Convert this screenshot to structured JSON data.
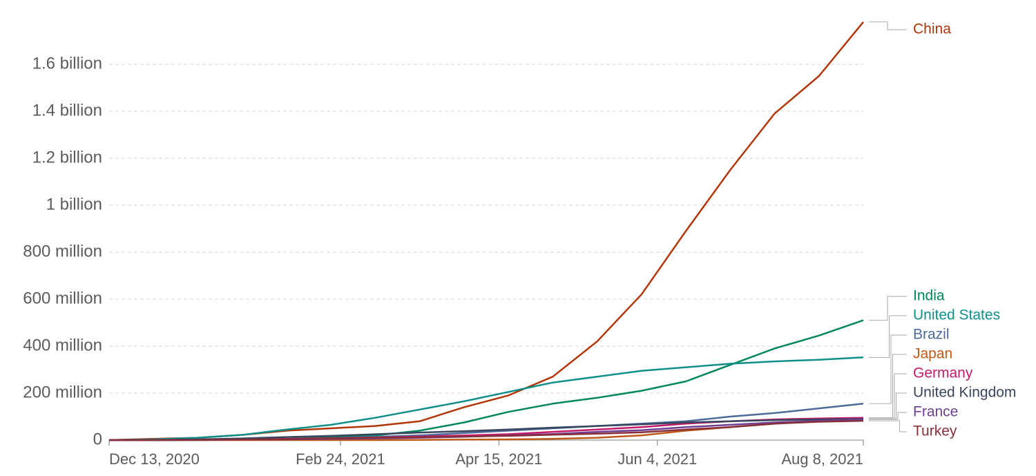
{
  "chart_data": {
    "type": "line",
    "x": [
      "2020-12-13",
      "2020-12-27",
      "2021-01-10",
      "2021-01-24",
      "2021-02-07",
      "2021-02-21",
      "2021-03-07",
      "2021-03-21",
      "2021-04-04",
      "2021-04-18",
      "2021-05-02",
      "2021-05-16",
      "2021-05-30",
      "2021-06-13",
      "2021-06-27",
      "2021-07-11",
      "2021-07-25",
      "2021-08-08"
    ],
    "series": [
      {
        "name": "China",
        "color": "#b13507",
        "values": [
          0,
          5000000,
          10000000,
          22000000,
          40000000,
          50000000,
          60000000,
          80000000,
          140000000,
          190000000,
          270000000,
          420000000,
          620000000,
          890000000,
          1150000000,
          1390000000,
          1550000000,
          1780000000
        ]
      },
      {
        "name": "India",
        "color": "#00875e",
        "values": [
          0,
          0,
          0,
          2000000,
          5000000,
          12000000,
          20000000,
          40000000,
          75000000,
          120000000,
          155000000,
          180000000,
          210000000,
          250000000,
          320000000,
          390000000,
          445000000,
          510000000
        ]
      },
      {
        "name": "United States",
        "color": "#0f8f8a",
        "values": [
          0,
          3000000,
          10000000,
          22000000,
          45000000,
          65000000,
          95000000,
          130000000,
          165000000,
          205000000,
          245000000,
          270000000,
          295000000,
          310000000,
          325000000,
          335000000,
          342000000,
          352000000
        ]
      },
      {
        "name": "Brazil",
        "color": "#4c6a9c",
        "values": [
          0,
          0,
          0,
          2000000,
          5000000,
          8000000,
          14000000,
          20000000,
          30000000,
          40000000,
          50000000,
          60000000,
          70000000,
          80000000,
          100000000,
          115000000,
          135000000,
          155000000
        ]
      },
      {
        "name": "Japan",
        "color": "#c05917",
        "values": [
          0,
          0,
          0,
          0,
          0,
          0,
          0,
          1000000,
          2000000,
          3000000,
          5000000,
          10000000,
          20000000,
          40000000,
          55000000,
          70000000,
          85000000,
          95000000
        ]
      },
      {
        "name": "Germany",
        "color": "#c5196a",
        "values": [
          0,
          0,
          2000000,
          3000000,
          5000000,
          8000000,
          11000000,
          15000000,
          20000000,
          25000000,
          35000000,
          45000000,
          55000000,
          70000000,
          80000000,
          88000000,
          92000000,
          95000000
        ]
      },
      {
        "name": "United Kingdom",
        "color": "#38465e",
        "values": [
          0,
          1000000,
          3000000,
          7000000,
          13000000,
          18000000,
          25000000,
          32000000,
          38000000,
          45000000,
          53000000,
          60000000,
          67000000,
          75000000,
          80000000,
          85000000,
          88000000,
          90000000
        ]
      },
      {
        "name": "France",
        "color": "#6d3e91",
        "values": [
          0,
          0,
          1000000,
          2000000,
          3000000,
          5000000,
          7000000,
          10000000,
          14000000,
          20000000,
          26000000,
          35000000,
          42000000,
          55000000,
          65000000,
          75000000,
          82000000,
          88000000
        ]
      },
      {
        "name": "Turkey",
        "color": "#883039",
        "values": [
          0,
          0,
          1000000,
          2000000,
          4000000,
          7000000,
          10000000,
          12000000,
          15000000,
          18000000,
          23000000,
          27000000,
          33000000,
          45000000,
          55000000,
          70000000,
          78000000,
          82000000
        ]
      }
    ],
    "xlim": [
      "2020-12-13",
      "2021-08-08"
    ],
    "xticks": [
      {
        "value": "2020-12-13",
        "label": "Dec 13, 2020"
      },
      {
        "value": "2021-02-24",
        "label": "Feb 24, 2021"
      },
      {
        "value": "2021-04-15",
        "label": "Apr 15, 2021"
      },
      {
        "value": "2021-06-04",
        "label": "Jun 4, 2021"
      },
      {
        "value": "2021-08-08",
        "label": "Aug 8, 2021"
      }
    ],
    "ylim": [
      0,
      1800000000
    ],
    "yticks": [
      0,
      {
        "value": 200000000,
        "label": "200 million"
      },
      {
        "value": 400000000,
        "label": "400 million"
      },
      {
        "value": 600000000,
        "label": "600 million"
      },
      {
        "value": 800000000,
        "label": "800 million"
      },
      {
        "value": 1000000000,
        "label": "1 billion"
      },
      {
        "value": 1200000000,
        "label": "1.2 billion"
      },
      {
        "value": 1400000000,
        "label": "1.4 billion"
      },
      {
        "value": 1600000000,
        "label": "1.6 billion"
      }
    ],
    "grid": true
  }
}
